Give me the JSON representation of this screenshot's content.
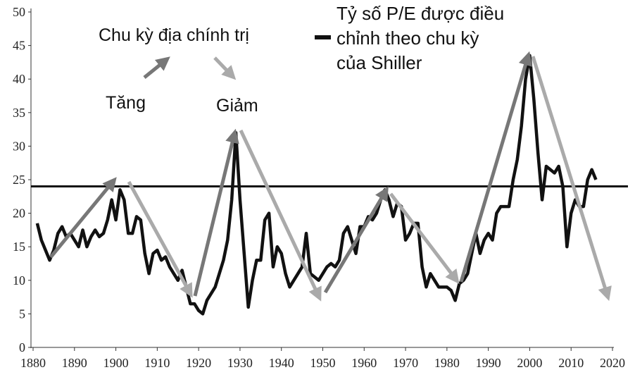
{
  "chart_data": {
    "type": "line",
    "annotations": {
      "cycle": "Chu kỳ địa chính trị",
      "up": "Tăng",
      "down": "Giảm"
    },
    "x": [
      1881,
      1882,
      1883,
      1884,
      1885,
      1886,
      1887,
      1888,
      1889,
      1890,
      1891,
      1892,
      1893,
      1894,
      1895,
      1896,
      1897,
      1898,
      1899,
      1900,
      1901,
      1902,
      1903,
      1904,
      1905,
      1906,
      1907,
      1908,
      1909,
      1910,
      1911,
      1912,
      1913,
      1914,
      1915,
      1916,
      1917,
      1918,
      1919,
      1920,
      1921,
      1922,
      1923,
      1924,
      1925,
      1926,
      1927,
      1928,
      1929,
      1930,
      1931,
      1932,
      1933,
      1934,
      1935,
      1936,
      1937,
      1938,
      1939,
      1940,
      1941,
      1942,
      1943,
      1944,
      1945,
      1946,
      1947,
      1948,
      1949,
      1950,
      1951,
      1952,
      1953,
      1954,
      1955,
      1956,
      1957,
      1958,
      1959,
      1960,
      1961,
      1962,
      1963,
      1964,
      1965,
      1966,
      1967,
      1968,
      1969,
      1970,
      1971,
      1972,
      1973,
      1974,
      1975,
      1976,
      1977,
      1978,
      1979,
      1980,
      1981,
      1982,
      1983,
      1984,
      1985,
      1986,
      1987,
      1988,
      1989,
      1990,
      1991,
      1992,
      1993,
      1994,
      1995,
      1996,
      1997,
      1998,
      1999,
      2000,
      2001,
      2002,
      2003,
      2004,
      2005,
      2006,
      2007,
      2008,
      2009,
      2010,
      2011,
      2012,
      2013,
      2014,
      2015,
      2016
    ],
    "series": [
      {
        "name": "Tỷ số P/E được điều chỉnh theo chu kỳ của Shiller",
        "color": "#111111",
        "values": [
          18.5,
          16,
          14.5,
          13,
          14.5,
          17,
          18,
          16.5,
          17,
          16,
          15,
          17.5,
          15,
          16.5,
          17.5,
          16.5,
          17,
          19,
          22,
          19,
          23.5,
          22,
          17,
          17,
          19.5,
          19,
          14,
          11,
          14,
          14.5,
          13,
          13.5,
          12,
          11,
          10,
          11.5,
          9,
          6.5,
          6.5,
          5.5,
          5,
          7,
          8,
          9,
          11,
          13,
          16,
          22,
          32,
          22,
          14,
          6,
          10,
          13,
          13,
          19,
          20,
          12,
          15,
          14,
          11,
          9,
          10,
          11,
          12,
          17,
          11,
          10.5,
          10,
          11,
          12,
          12.5,
          12,
          13,
          17,
          18,
          16,
          14,
          18,
          18,
          19.5,
          19,
          20,
          22,
          23.5,
          22,
          19.5,
          21.5,
          21,
          16,
          17,
          18.5,
          18.5,
          12,
          9,
          11,
          10,
          9,
          9,
          9,
          8.5,
          7,
          9.5,
          10,
          11,
          14,
          17,
          14,
          16,
          17,
          16,
          20,
          21,
          21,
          21,
          25,
          28,
          33,
          40,
          43.5,
          37,
          29,
          22,
          27,
          26.5,
          26,
          27,
          24,
          15,
          20,
          22,
          21,
          21,
          25,
          26.5,
          25
        ]
      }
    ],
    "reference_line": 24,
    "xlim": [
      1880,
      2020
    ],
    "xticks": [
      1880,
      1890,
      1900,
      1910,
      1920,
      1930,
      1940,
      1950,
      1960,
      1970,
      1980,
      1990,
      2000,
      2010,
      2020
    ],
    "ylim": [
      0,
      50
    ],
    "yticks": [
      0,
      5,
      10,
      15,
      20,
      25,
      30,
      35,
      40,
      45,
      50
    ]
  }
}
